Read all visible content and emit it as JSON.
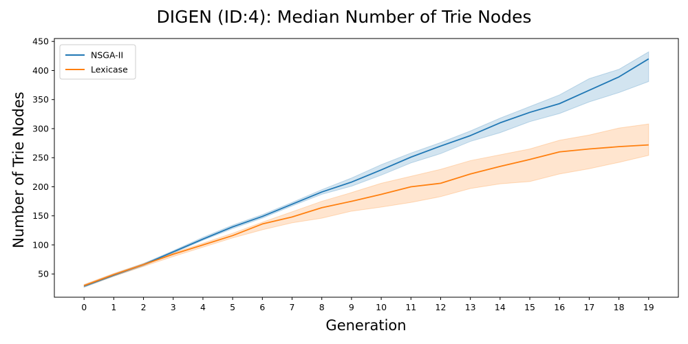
{
  "chart_data": {
    "type": "line",
    "title": "DIGEN (ID:4): Median Number of Trie Nodes",
    "xlabel": "Generation",
    "ylabel": "Number of Trie Nodes",
    "x": [
      0,
      1,
      2,
      3,
      4,
      5,
      6,
      7,
      8,
      9,
      10,
      11,
      12,
      13,
      14,
      15,
      16,
      17,
      18,
      19
    ],
    "xlim": [
      -1,
      20
    ],
    "ylim": [
      10,
      455
    ],
    "yticks": [
      50,
      100,
      150,
      200,
      250,
      300,
      350,
      400,
      450
    ],
    "grid": false,
    "legend_position": "upper-left",
    "series": [
      {
        "name": "NSGA-II",
        "color": "#1f77b4",
        "values": [
          29,
          48,
          66,
          88,
          110,
          131,
          149,
          170,
          191,
          208,
          229,
          251,
          270,
          288,
          310,
          328,
          343,
          366,
          389,
          420
        ],
        "lower": [
          27,
          46,
          64,
          86,
          108,
          128,
          146,
          167,
          187,
          201,
          220,
          241,
          257,
          278,
          293,
          312,
          326,
          346,
          362,
          381
        ],
        "upper": [
          31,
          50,
          68,
          90,
          113,
          134,
          152,
          173,
          195,
          215,
          238,
          258,
          276,
          296,
          318,
          338,
          358,
          386,
          402,
          432
        ]
      },
      {
        "name": "Lexicase",
        "color": "#ff7f0e",
        "values": [
          30,
          49,
          66,
          84,
          100,
          116,
          136,
          148,
          164,
          175,
          187,
          200,
          206,
          222,
          235,
          247,
          260,
          265,
          269,
          272
        ],
        "lower": [
          28,
          46,
          63,
          80,
          96,
          112,
          126,
          138,
          146,
          158,
          165,
          173,
          183,
          197,
          205,
          209,
          222,
          231,
          242,
          254
        ],
        "upper": [
          32,
          51,
          68,
          86,
          103,
          120,
          139,
          157,
          175,
          190,
          206,
          218,
          230,
          245,
          255,
          265,
          280,
          289,
          301,
          308
        ]
      }
    ]
  }
}
